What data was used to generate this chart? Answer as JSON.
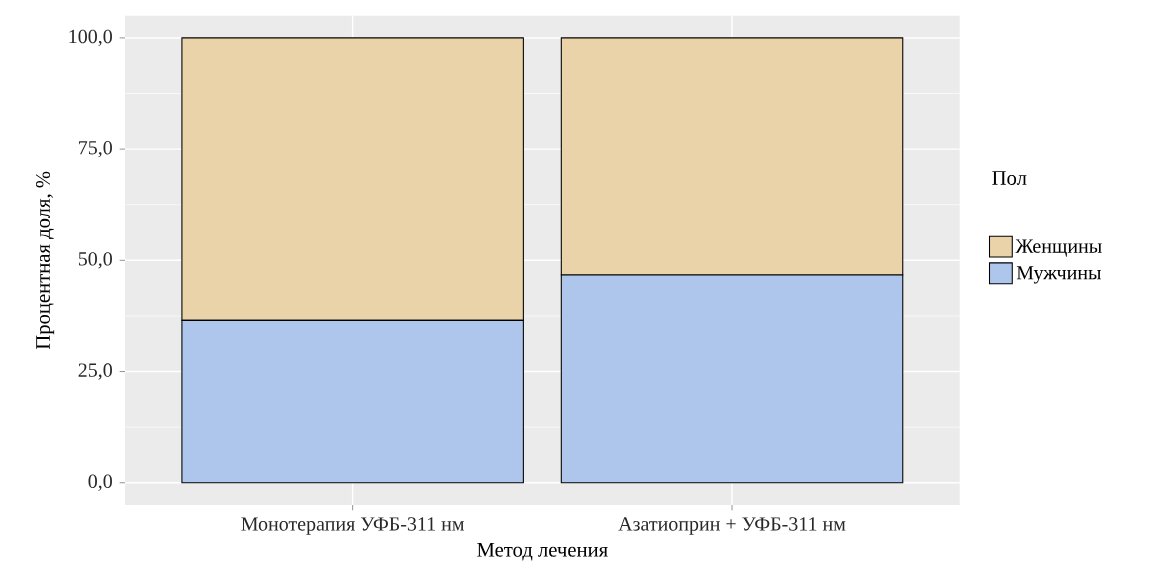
{
  "chart_data": {
    "type": "bar",
    "stacked": true,
    "xlabel": "Метод лечения",
    "ylabel": "Процентная доля, %",
    "legend_title": "Пол",
    "categories": [
      "Монотерапия УФБ-311 нм",
      "Азатиоприн + УФБ-311 нм"
    ],
    "series": [
      {
        "name": "Мужчины",
        "color": "#aec6ec",
        "values": [
          36.5,
          46.7
        ]
      },
      {
        "name": "Женщины",
        "color": "#ebd3a9",
        "values": [
          63.5,
          53.3
        ]
      }
    ],
    "ylim": [
      -5,
      105
    ],
    "yticks": [
      {
        "value": 0,
        "label": "0,0"
      },
      {
        "value": 25,
        "label": "25,0"
      },
      {
        "value": 50,
        "label": "50,0"
      },
      {
        "value": 75,
        "label": "75,0"
      },
      {
        "value": 100,
        "label": "100,0"
      }
    ],
    "grid": true,
    "legend": "right"
  }
}
